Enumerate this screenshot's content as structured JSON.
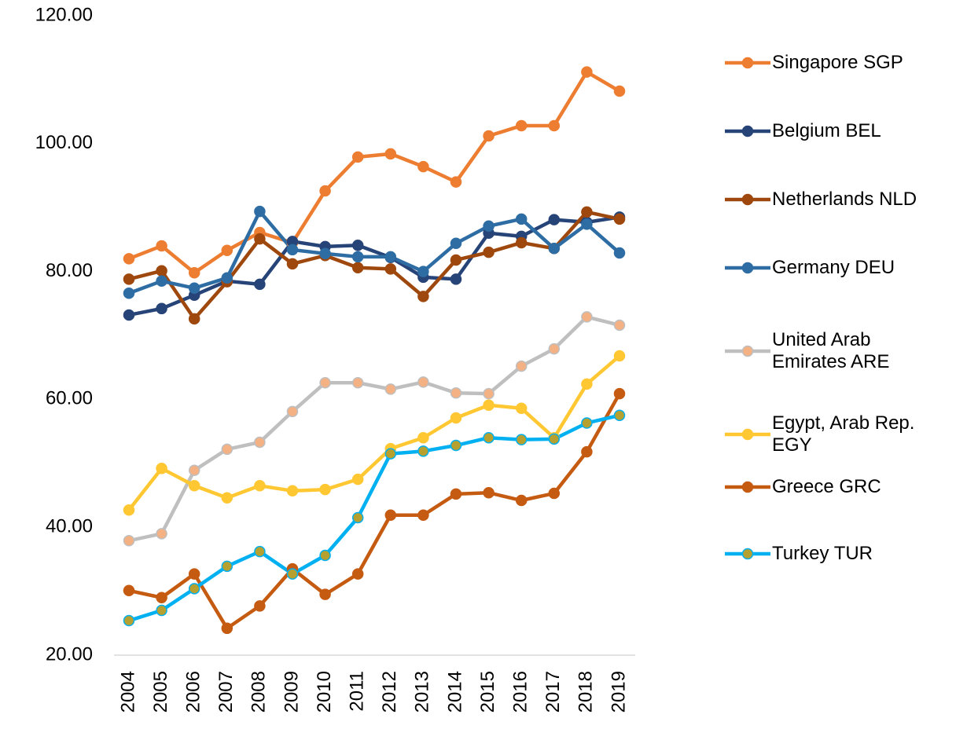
{
  "chart_data": {
    "type": "line",
    "categories": [
      "2004",
      "2005",
      "2006",
      "2007",
      "2008",
      "2009",
      "2010",
      "2011",
      "2012",
      "2013",
      "2014",
      "2015",
      "2016",
      "2017",
      "2018",
      "2019"
    ],
    "series": [
      {
        "name": "Singapore SGP",
        "color": "#ED7D31",
        "marker_color": "#ED7D31",
        "values": [
          82.0,
          84.0,
          79.8,
          83.3,
          86.1,
          84.5,
          92.6,
          97.9,
          98.4,
          96.4,
          94.0,
          101.2,
          102.8,
          102.8,
          111.2,
          108.2
        ]
      },
      {
        "name": "Belgium BEL",
        "color": "#264478",
        "marker_color": "#264478",
        "values": [
          73.2,
          74.2,
          76.3,
          78.5,
          78.0,
          84.7,
          83.9,
          84.1,
          82.2,
          79.1,
          78.8,
          86.0,
          85.5,
          88.1,
          87.7,
          88.5
        ]
      },
      {
        "name": "Netherlands NLD",
        "color": "#9E480E",
        "marker_color": "#9E480E",
        "values": [
          78.8,
          80.1,
          72.6,
          78.4,
          85.1,
          81.2,
          82.5,
          80.6,
          80.4,
          76.1,
          81.8,
          83.0,
          84.5,
          83.6,
          89.3,
          88.2
        ]
      },
      {
        "name": "Germany DEU",
        "color": "#2E6DA4",
        "marker_color": "#2E6DA4",
        "values": [
          76.6,
          78.5,
          77.4,
          79.0,
          89.4,
          83.4,
          82.8,
          82.3,
          82.3,
          80.0,
          84.4,
          87.1,
          88.2,
          83.6,
          87.4,
          82.9
        ]
      },
      {
        "name": "United Arab Emirates ARE",
        "color": "#BFBFBF",
        "marker_color": "#F4B183",
        "values": [
          37.9,
          39.0,
          48.9,
          52.2,
          53.3,
          58.1,
          62.6,
          62.6,
          61.6,
          62.7,
          61.0,
          60.9,
          65.2,
          67.9,
          72.9,
          71.6
        ]
      },
      {
        "name": "Egypt, Arab Rep. EGY",
        "color": "#FFC833",
        "marker_color": "#FFC833",
        "values": [
          42.7,
          49.2,
          46.5,
          44.6,
          46.5,
          45.7,
          45.9,
          47.5,
          52.3,
          54.0,
          57.1,
          59.1,
          58.6,
          54.0,
          62.4,
          66.8
        ]
      },
      {
        "name": "Greece GRC",
        "color": "#C55A11",
        "marker_color": "#C55A11",
        "values": [
          30.1,
          29.0,
          32.7,
          24.2,
          27.7,
          33.5,
          29.5,
          32.7,
          41.9,
          41.9,
          45.2,
          45.4,
          44.2,
          45.3,
          51.8,
          60.9
        ]
      },
      {
        "name": "Turkey TUR",
        "color": "#00B0F0",
        "marker_color": "#B5A030",
        "values": [
          25.4,
          27.0,
          30.4,
          33.9,
          36.2,
          32.7,
          35.6,
          41.5,
          51.5,
          51.9,
          52.8,
          54.0,
          53.7,
          53.8,
          56.3,
          57.5
        ]
      }
    ],
    "ylim": [
      20,
      120
    ],
    "yticks": [
      {
        "value": 20,
        "label": "20.00"
      },
      {
        "value": 40,
        "label": "40.00"
      },
      {
        "value": 60,
        "label": "60.00"
      },
      {
        "value": 80,
        "label": "80.00"
      },
      {
        "value": 100,
        "label": "100.00"
      },
      {
        "value": 120,
        "label": "120.00"
      }
    ],
    "grid": false,
    "legend": "right"
  }
}
